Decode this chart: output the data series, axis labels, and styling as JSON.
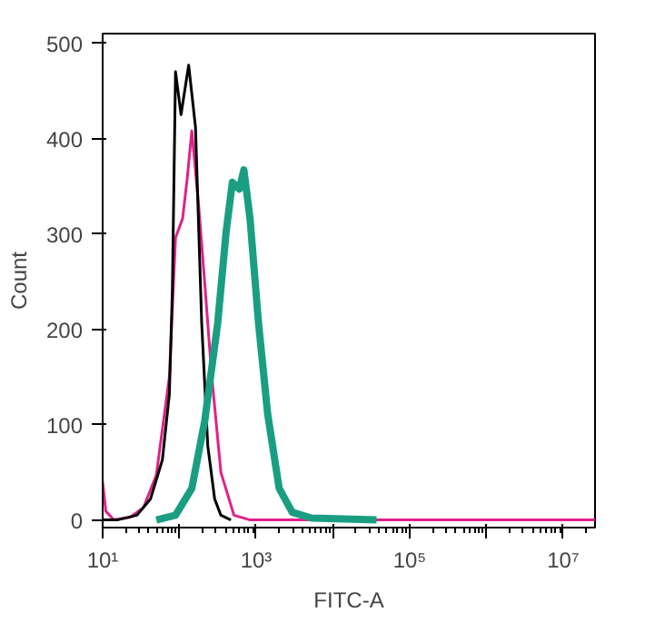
{
  "chart_data": {
    "type": "line",
    "xlabel": "FITC-A",
    "ylabel": "Count",
    "log": "x",
    "grid": false,
    "xlim": [
      10,
      26000000
    ],
    "ylim": [
      -8,
      510
    ],
    "xticks": [
      {
        "value": 10,
        "label": "10¹"
      },
      {
        "value": 100,
        "label": null
      },
      {
        "value": 1000,
        "label": "10³"
      },
      {
        "value": 10000,
        "label": null
      },
      {
        "value": 100000,
        "label": "10⁵"
      },
      {
        "value": 1000000,
        "label": null
      },
      {
        "value": 10000000,
        "label": "10⁷"
      }
    ],
    "yticks": [
      0,
      100,
      200,
      300,
      400,
      500
    ],
    "series": [
      {
        "color": "#e0218a",
        "x": [
          10,
          11,
          14,
          23,
          34,
          50,
          74,
          89,
          110,
          126,
          145,
          178,
          214,
          263,
          347,
          513,
          832,
          1000,
          26000000
        ],
        "values": [
          40,
          9,
          0,
          3,
          13,
          47,
          150,
          296,
          316,
          357,
          408,
          330,
          248,
          152,
          50,
          5,
          0,
          0,
          0
        ]
      },
      {
        "color": "#000000",
        "x": [
          10,
          15.5,
          28,
          42,
          60,
          74,
          81,
          89,
          105,
          132,
          162,
          195,
          234,
          288,
          347,
          468
        ],
        "values": [
          0,
          0,
          5,
          22,
          63,
          132,
          242,
          470,
          425,
          477,
          412,
          207,
          78,
          22,
          5,
          0
        ]
      },
      {
        "color": "#1a9e82",
        "x": [
          50,
          89,
          145,
          214,
          316,
          407,
          490,
          603,
          692,
          832,
          1072,
          1413,
          1995,
          2951,
          5248,
          37000
        ],
        "values": [
          0,
          5,
          33,
          104,
          207,
          303,
          354,
          347,
          367,
          316,
          207,
          111,
          33,
          8,
          2,
          0
        ]
      }
    ]
  }
}
